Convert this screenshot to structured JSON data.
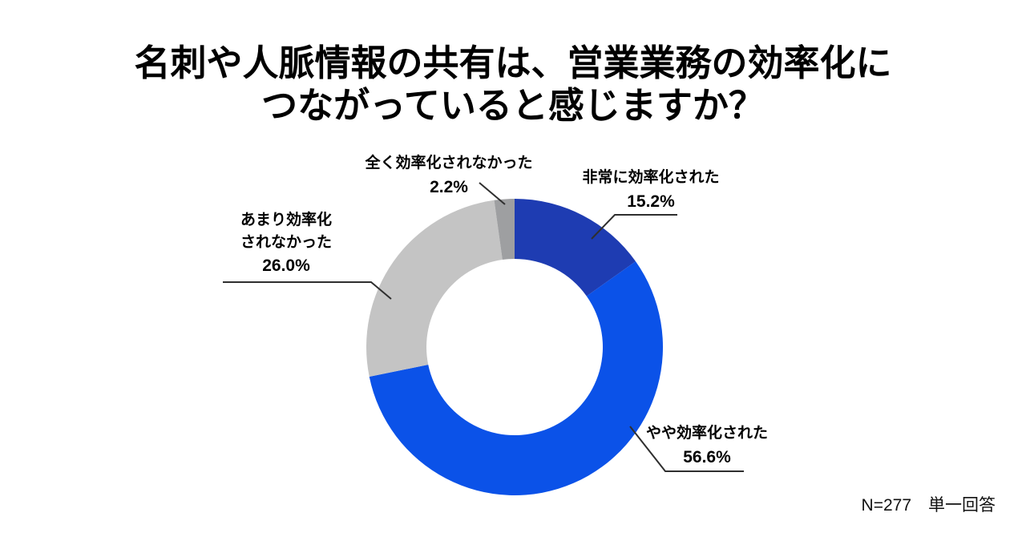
{
  "page": {
    "background": "#ffffff"
  },
  "chart_data": {
    "type": "donut",
    "title": "名刺や人脈情報の共有は、営業業務の効率化に\nつながっていると感じますか？",
    "start_angle": "12-o-clock",
    "direction": "clockwise",
    "unit": "%",
    "total": 100,
    "hole_ratio": 0.59,
    "legend_position": "callouts-with-leader-lines",
    "segments": [
      {
        "key": "very-efficient",
        "label": "非常に効率化された",
        "value": 15.2,
        "pct": "15.2%",
        "color": "#1e3cb2"
      },
      {
        "key": "somewhat-efficient",
        "label": "やや効率化された",
        "value": 56.6,
        "pct": "56.6%",
        "color": "#0b52e8"
      },
      {
        "key": "not-very-efficient",
        "label": "あまり効率化されなかった",
        "label_display": "あまり効率化\nされなかった",
        "value": 26.0,
        "pct": "26.0%",
        "color": "#c4c4c4"
      },
      {
        "key": "not-at-all-efficient",
        "label": "全く効率化されなかった",
        "value": 2.2,
        "pct": "2.2%",
        "color": "#9e9fa1"
      }
    ],
    "note": "N=277　単一回答"
  }
}
